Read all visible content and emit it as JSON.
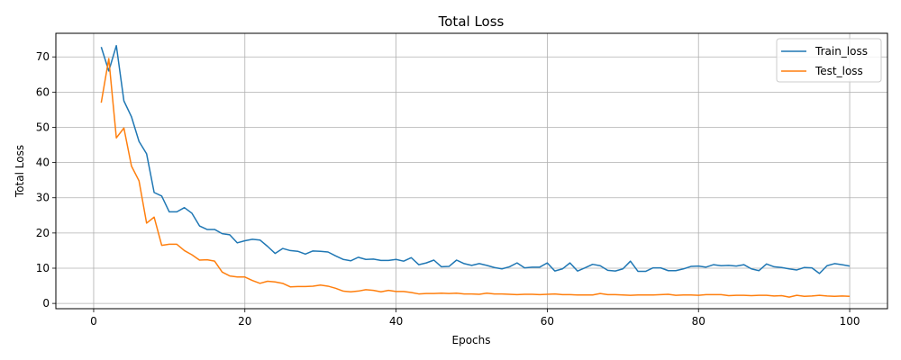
{
  "chart_data": {
    "type": "line",
    "title": "Total Loss",
    "xlabel": "Epochs",
    "ylabel": "Total Loss",
    "xlim": [
      -5,
      105
    ],
    "ylim": [
      -1.5,
      76.7
    ],
    "xticks": [
      0,
      20,
      40,
      60,
      80,
      100
    ],
    "yticks": [
      0,
      10,
      20,
      30,
      40,
      50,
      60,
      70
    ],
    "grid": true,
    "legend_position": "top-right",
    "series": [
      {
        "name": "Train_loss",
        "color": "#1f77b4",
        "x": [
          1,
          2,
          3,
          4,
          5,
          6,
          7,
          8,
          9,
          10,
          11,
          12,
          13,
          14,
          15,
          16,
          17,
          18,
          19,
          20,
          21,
          22,
          23,
          24,
          25,
          26,
          27,
          28,
          29,
          30,
          31,
          32,
          33,
          34,
          35,
          36,
          37,
          38,
          39,
          40,
          41,
          42,
          43,
          44,
          45,
          46,
          47,
          48,
          49,
          50,
          51,
          52,
          53,
          54,
          55,
          56,
          57,
          58,
          59,
          60,
          61,
          62,
          63,
          64,
          65,
          66,
          67,
          68,
          69,
          70,
          71,
          72,
          73,
          74,
          75,
          76,
          77,
          78,
          79,
          80,
          81,
          82,
          83,
          84,
          85,
          86,
          87,
          88,
          89,
          90,
          91,
          92,
          93,
          94,
          95,
          96,
          97,
          98,
          99,
          100
        ],
        "values": [
          72.8,
          66.0,
          73.2,
          57.5,
          53.0,
          46.0,
          42.5,
          31.5,
          30.5,
          26.0,
          26.0,
          27.2,
          25.6,
          22.0,
          21.0,
          21.0,
          19.8,
          19.5,
          17.2,
          17.8,
          18.2,
          18.0,
          16.2,
          14.2,
          15.6,
          15.0,
          14.8,
          14.0,
          14.9,
          14.8,
          14.6,
          13.5,
          12.5,
          12.1,
          13.1,
          12.5,
          12.6,
          12.2,
          12.2,
          12.5,
          12.0,
          13.0,
          11.0,
          11.5,
          12.3,
          10.4,
          10.5,
          12.3,
          11.3,
          10.8,
          11.3,
          10.8,
          10.2,
          9.8,
          10.4,
          11.5,
          10.1,
          10.3,
          10.3,
          11.5,
          9.2,
          9.8,
          11.5,
          9.2,
          10.1,
          11.1,
          10.7,
          9.4,
          9.2,
          9.8,
          12.0,
          9.1,
          9.1,
          10.1,
          10.1,
          9.3,
          9.3,
          9.8,
          10.5,
          10.6,
          10.3,
          11.0,
          10.7,
          10.8,
          10.6,
          11.0,
          9.8,
          9.3,
          11.2,
          10.4,
          10.2,
          9.8,
          9.5,
          10.2,
          10.1,
          8.5,
          10.7,
          11.3,
          11.0,
          10.6
        ]
      },
      {
        "name": "Test_loss",
        "color": "#ff7f0e",
        "x": [
          1,
          2,
          3,
          4,
          5,
          6,
          7,
          8,
          9,
          10,
          11,
          12,
          13,
          14,
          15,
          16,
          17,
          18,
          19,
          20,
          21,
          22,
          23,
          24,
          25,
          26,
          27,
          28,
          29,
          30,
          31,
          32,
          33,
          34,
          35,
          36,
          37,
          38,
          39,
          40,
          41,
          42,
          43,
          44,
          45,
          46,
          47,
          48,
          49,
          50,
          51,
          52,
          53,
          54,
          55,
          56,
          57,
          58,
          59,
          60,
          61,
          62,
          63,
          64,
          65,
          66,
          67,
          68,
          69,
          70,
          71,
          72,
          73,
          74,
          75,
          76,
          77,
          78,
          79,
          80,
          81,
          82,
          83,
          84,
          85,
          86,
          87,
          88,
          89,
          90,
          91,
          92,
          93,
          94,
          95,
          96,
          97,
          98,
          99,
          100
        ],
        "values": [
          57.0,
          69.5,
          47.0,
          49.8,
          39.0,
          34.8,
          22.8,
          24.5,
          16.5,
          16.8,
          16.8,
          15.0,
          13.8,
          12.3,
          12.4,
          12.0,
          8.9,
          7.8,
          7.5,
          7.5,
          6.5,
          5.7,
          6.3,
          6.1,
          5.7,
          4.7,
          4.8,
          4.8,
          4.9,
          5.2,
          4.9,
          4.3,
          3.5,
          3.3,
          3.5,
          3.9,
          3.7,
          3.3,
          3.7,
          3.4,
          3.4,
          3.1,
          2.7,
          2.8,
          2.8,
          2.9,
          2.8,
          2.9,
          2.7,
          2.7,
          2.6,
          2.9,
          2.7,
          2.7,
          2.6,
          2.5,
          2.6,
          2.6,
          2.5,
          2.6,
          2.7,
          2.5,
          2.5,
          2.4,
          2.4,
          2.4,
          2.8,
          2.5,
          2.5,
          2.4,
          2.3,
          2.4,
          2.4,
          2.4,
          2.5,
          2.6,
          2.3,
          2.4,
          2.4,
          2.3,
          2.5,
          2.5,
          2.5,
          2.2,
          2.3,
          2.3,
          2.2,
          2.3,
          2.3,
          2.1,
          2.2,
          1.8,
          2.3,
          2.0,
          2.1,
          2.3,
          2.1,
          2.0,
          2.1,
          2.0
        ]
      }
    ]
  }
}
